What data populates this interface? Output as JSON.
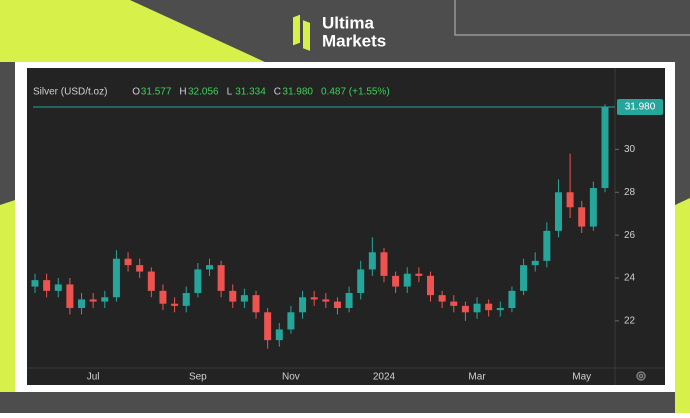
{
  "branding": {
    "line1": "Ultima",
    "line2": "Markets"
  },
  "chart_data": {
    "type": "candlestick",
    "title": "Silver (USD/t.oz)",
    "ohlc": [
      {
        "key": "O",
        "value": "31.577"
      },
      {
        "key": "H",
        "value": "32.056"
      },
      {
        "key": "L",
        "value": "31.334"
      },
      {
        "key": "C",
        "value": "31.980"
      }
    ],
    "change": "0.487 (+1.55%)",
    "last_price": {
      "value": 31.98,
      "label": "31.980"
    },
    "categories": [
      null,
      null,
      null,
      null,
      null,
      "Jul",
      null,
      null,
      null,
      null,
      null,
      null,
      null,
      null,
      "Sep",
      null,
      null,
      null,
      null,
      null,
      null,
      null,
      "Nov",
      null,
      null,
      null,
      null,
      null,
      null,
      null,
      "2024",
      null,
      null,
      null,
      null,
      null,
      null,
      null,
      "Mar",
      null,
      null,
      null,
      null,
      null,
      null,
      null,
      null,
      "May",
      null,
      null
    ],
    "open": [
      23.6,
      23.9,
      23.4,
      23.7,
      22.6,
      23.0,
      22.9,
      23.1,
      24.9,
      24.6,
      24.3,
      23.4,
      22.8,
      22.7,
      23.3,
      24.4,
      24.6,
      23.4,
      22.9,
      23.2,
      22.4,
      21.1,
      21.6,
      22.4,
      23.1,
      23.0,
      22.9,
      22.6,
      23.3,
      24.4,
      25.2,
      24.1,
      23.6,
      24.2,
      24.1,
      23.2,
      22.9,
      22.7,
      22.4,
      22.8,
      22.5,
      22.6,
      23.4,
      24.6,
      24.8,
      26.2,
      28.0,
      27.3,
      26.4,
      28.2
    ],
    "high": [
      24.2,
      24.2,
      24.0,
      24.0,
      23.3,
      23.3,
      23.4,
      25.3,
      25.2,
      24.9,
      24.5,
      23.7,
      23.1,
      23.6,
      24.7,
      24.9,
      24.8,
      23.7,
      23.5,
      23.4,
      22.6,
      21.9,
      22.7,
      23.4,
      23.4,
      23.3,
      23.1,
      23.6,
      24.8,
      25.9,
      25.4,
      24.3,
      24.5,
      24.5,
      24.3,
      23.4,
      23.2,
      22.9,
      23.1,
      23.0,
      22.9,
      23.6,
      24.9,
      25.2,
      26.6,
      28.6,
      29.8,
      27.6,
      28.5,
      32.1
    ],
    "low": [
      23.3,
      23.1,
      23.1,
      22.3,
      22.3,
      22.6,
      22.6,
      22.9,
      24.3,
      24.0,
      23.1,
      22.5,
      22.4,
      22.4,
      23.1,
      24.1,
      23.1,
      22.6,
      22.6,
      22.1,
      20.7,
      20.8,
      21.4,
      22.1,
      22.7,
      22.6,
      22.3,
      22.4,
      23.0,
      24.1,
      23.8,
      23.3,
      23.3,
      23.8,
      22.9,
      22.6,
      22.4,
      22.0,
      22.1,
      22.2,
      22.2,
      22.4,
      23.2,
      24.3,
      24.5,
      25.9,
      26.8,
      26.1,
      26.2,
      28.0
    ],
    "close": [
      23.9,
      23.4,
      23.7,
      22.6,
      23.0,
      22.9,
      23.1,
      24.9,
      24.6,
      24.3,
      23.4,
      22.8,
      22.7,
      23.3,
      24.4,
      24.6,
      23.4,
      22.9,
      23.2,
      22.4,
      21.1,
      21.6,
      22.4,
      23.1,
      23.0,
      22.9,
      22.6,
      23.3,
      24.4,
      25.2,
      24.1,
      23.6,
      24.2,
      24.1,
      23.2,
      22.9,
      22.7,
      22.4,
      22.8,
      22.5,
      22.6,
      23.4,
      24.6,
      24.8,
      26.2,
      28.0,
      27.3,
      26.4,
      28.2,
      31.98
    ],
    "up_color": "#26a69a",
    "down_color": "#ef5350",
    "ylim": [
      19.8,
      33.8
    ],
    "yticks": [
      22,
      24,
      26,
      28,
      30
    ]
  }
}
